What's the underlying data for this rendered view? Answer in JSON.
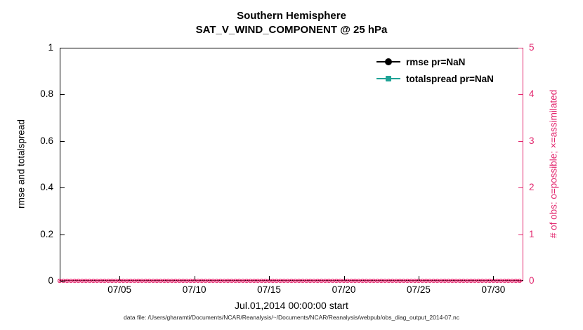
{
  "figure": {
    "title": "Southern Hemisphere",
    "subtitle": "SAT_V_WIND_COMPONENT @ 25 hPa",
    "footer": "data file: /Users/gharamti/Documents/NCAR/Reanalysis/~/Documents/NCAR/Reanalysis/webpub/obs_diag_output_2014-07.nc"
  },
  "legend": {
    "position": "top-right-inside",
    "items": [
      {
        "label": "rmse pr=NaN",
        "marker": "circle",
        "color": "#000000"
      },
      {
        "label": "totalspread pr=NaN",
        "marker": "square",
        "color": "#1fa396"
      }
    ]
  },
  "chart_data": {
    "type": "line",
    "title": "Southern Hemisphere",
    "subtitle": "SAT_V_WIND_COMPONENT @ 25 hPa",
    "xlabel": "Jul.01,2014 00:00:00 start",
    "ylabel_left": "rmse and totalspread",
    "ylabel_right": "# of obs: o=possible; ×=assimilated",
    "xlim_days": [
      1,
      32
    ],
    "ylim_left": [
      0,
      1
    ],
    "ylim_right": [
      0,
      5
    ],
    "yticks_left": {
      "values": [
        0,
        0.2,
        0.4,
        0.6,
        0.8,
        1
      ],
      "labels": [
        "0",
        "0.2",
        "0.4",
        "0.6",
        "0.8",
        "1"
      ]
    },
    "yticks_right": {
      "values": [
        0,
        1,
        2,
        3,
        4,
        5
      ],
      "labels": [
        "0",
        "1",
        "2",
        "3",
        "4",
        "5"
      ]
    },
    "xticks": {
      "days": [
        5,
        10,
        15,
        20,
        25,
        30
      ],
      "labels": [
        "07/05",
        "07/10",
        "07/15",
        "07/20",
        "07/25",
        "07/30"
      ]
    },
    "grid": false,
    "legend_position": "top-right-inside",
    "series": [
      {
        "name": "rmse pr=NaN",
        "axis": "left",
        "color": "#000000",
        "marker": "filled-circle",
        "pr": "NaN",
        "plotted": false,
        "values": []
      },
      {
        "name": "totalspread pr=NaN",
        "axis": "left",
        "color": "#1fa396",
        "marker": "filled-square",
        "pr": "NaN",
        "plotted": false,
        "values": []
      },
      {
        "name": "# of obs possible (o)",
        "axis": "right",
        "color": "#e2266d",
        "marker": "open-circle",
        "constant_value": 0,
        "time_start_day": 1,
        "time_end_day": 31.75,
        "time_step_days": 0.25
      },
      {
        "name": "# of obs assimilated (×)",
        "axis": "right",
        "color": "#e2266d",
        "marker": "x",
        "constant_value": 0,
        "time_start_day": 1,
        "time_end_day": 31.75,
        "time_step_days": 0.25
      }
    ],
    "colors": {
      "accent": "#e2266d",
      "axis": "#000000",
      "teal": "#1fa396",
      "background": "#ffffff"
    }
  }
}
